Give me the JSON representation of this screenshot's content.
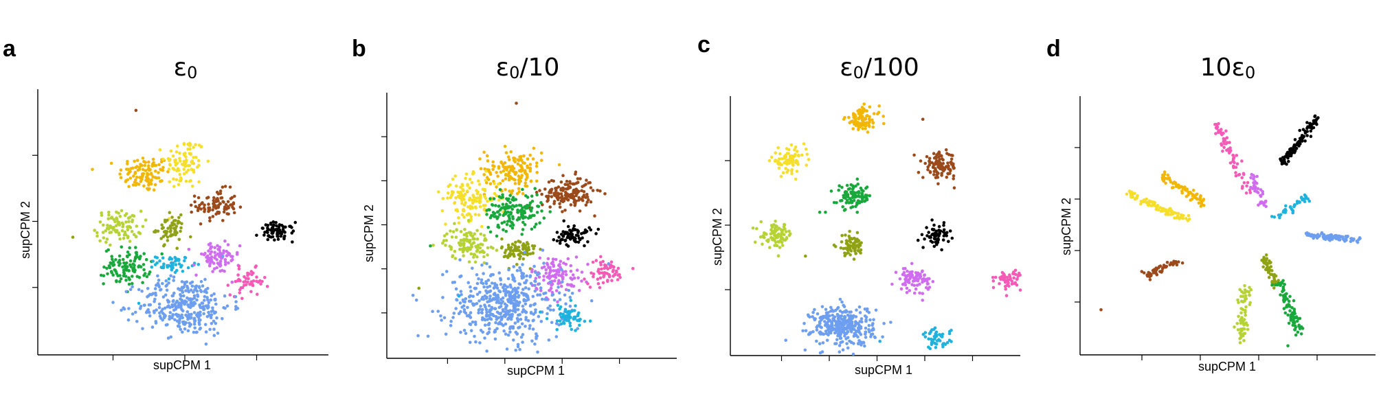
{
  "panels": [
    {
      "letter": "a",
      "title": "ε0",
      "xlabel": "supCPM 1",
      "ylabel": "supCPM 2",
      "x_ticks": 3,
      "y_ticks": 3
    },
    {
      "letter": "b",
      "title": "ε0/10",
      "xlabel": "supCPM 1",
      "ylabel": "supCPM 2",
      "x_ticks": 4,
      "y_ticks": 5
    },
    {
      "letter": "c",
      "title": "ε0/100",
      "xlabel": "supCPM 1",
      "ylabel": "supCPM 2",
      "x_ticks": 5,
      "y_ticks": 3
    },
    {
      "letter": "d",
      "title": "10ε0",
      "xlabel": "supCPM 1",
      "ylabel": "supCPM 2",
      "x_ticks": 4,
      "y_ticks": 4
    }
  ],
  "chart_data": [
    {
      "type": "scatter",
      "title": "ε0",
      "xlabel": "supCPM 1",
      "ylabel": "supCPM 2",
      "xlim": [
        0,
        100
      ],
      "ylim": [
        0,
        100
      ],
      "clusters": [
        {
          "color": "#f2b705",
          "center": [
            36,
            68
          ],
          "spread": [
            4.5,
            3.5
          ],
          "count": 110,
          "shape": "blob"
        },
        {
          "color": "#f5df2a",
          "center": [
            50,
            72
          ],
          "spread": [
            3.5,
            5
          ],
          "count": 90,
          "shape": "blob"
        },
        {
          "color": "#9b4a1b",
          "center": [
            61,
            56
          ],
          "spread": [
            3.5,
            3
          ],
          "count": 90,
          "shape": "blob"
        },
        {
          "color": "#b5d334",
          "center": [
            27,
            48
          ],
          "spread": [
            4,
            3
          ],
          "count": 90,
          "shape": "blob"
        },
        {
          "color": "#8fa214",
          "center": [
            45,
            47
          ],
          "spread": [
            2.5,
            2.5
          ],
          "count": 60,
          "shape": "blob"
        },
        {
          "color": "#000000",
          "center": [
            82,
            46
          ],
          "spread": [
            3,
            1.8
          ],
          "count": 70,
          "shape": "blob"
        },
        {
          "color": "#18a83b",
          "center": [
            30,
            33
          ],
          "spread": [
            4,
            3.5
          ],
          "count": 110,
          "shape": "blob"
        },
        {
          "color": "#1eb3de",
          "center": [
            46,
            34
          ],
          "spread": [
            3,
            1.5
          ],
          "count": 50,
          "shape": "blob"
        },
        {
          "color": "#cf6cf0",
          "center": [
            61,
            36
          ],
          "spread": [
            4,
            3
          ],
          "count": 80,
          "shape": "blob"
        },
        {
          "color": "#f55bb6",
          "center": [
            72,
            27
          ],
          "spread": [
            3,
            2.5
          ],
          "count": 50,
          "shape": "blob"
        },
        {
          "color": "#6d9ef0",
          "center": [
            50,
            18
          ],
          "spread": [
            8,
            5.5
          ],
          "count": 320,
          "shape": "blob"
        }
      ],
      "outliers": [
        {
          "x": 33,
          "y": 92,
          "color": "#9b4a1b"
        },
        {
          "x": 11,
          "y": 44,
          "color": "#8fa214"
        },
        {
          "x": 34,
          "y": 19,
          "color": "#1eb3de"
        },
        {
          "x": 54,
          "y": 8,
          "color": "#6d9ef0"
        }
      ]
    },
    {
      "type": "scatter",
      "title": "ε0/10",
      "xlabel": "supCPM 1",
      "ylabel": "supCPM 2",
      "xlim": [
        0,
        100
      ],
      "ylim": [
        0,
        100
      ],
      "clusters": [
        {
          "color": "#f2b705",
          "center": [
            43,
            71
          ],
          "spread": [
            5,
            4
          ],
          "count": 150,
          "shape": "blob"
        },
        {
          "color": "#f5df2a",
          "center": [
            28,
            60
          ],
          "spread": [
            5,
            4
          ],
          "count": 130,
          "shape": "blob"
        },
        {
          "color": "#9b4a1b",
          "center": [
            62,
            62
          ],
          "spread": [
            4.5,
            3
          ],
          "count": 160,
          "shape": "blob"
        },
        {
          "color": "#18a83b",
          "center": [
            43,
            55
          ],
          "spread": [
            5,
            3.5
          ],
          "count": 150,
          "shape": "blob"
        },
        {
          "color": "#b5d334",
          "center": [
            27,
            43
          ],
          "spread": [
            4,
            3
          ],
          "count": 110,
          "shape": "blob"
        },
        {
          "color": "#8fa214",
          "center": [
            45,
            40
          ],
          "spread": [
            3,
            2.5
          ],
          "count": 80,
          "shape": "blob"
        },
        {
          "color": "#000000",
          "center": [
            64,
            46
          ],
          "spread": [
            3,
            2
          ],
          "count": 70,
          "shape": "blob"
        },
        {
          "color": "#cf6cf0",
          "center": [
            58,
            31
          ],
          "spread": [
            4.5,
            3.5
          ],
          "count": 110,
          "shape": "blob"
        },
        {
          "color": "#f55bb6",
          "center": [
            75,
            32
          ],
          "spread": [
            3.5,
            2.5
          ],
          "count": 60,
          "shape": "blob"
        },
        {
          "color": "#6d9ef0",
          "center": [
            40,
            20
          ],
          "spread": [
            10,
            7
          ],
          "count": 480,
          "shape": "blob"
        },
        {
          "color": "#1eb3de",
          "center": [
            62,
            15
          ],
          "spread": [
            3.5,
            2.5
          ],
          "count": 60,
          "shape": "blob"
        }
      ],
      "outliers": [
        {
          "x": 44,
          "y": 96,
          "color": "#9b4a1b"
        },
        {
          "x": 10,
          "y": 26,
          "color": "#8fa214"
        },
        {
          "x": 24,
          "y": 23,
          "color": "#1eb3de"
        },
        {
          "x": 14,
          "y": 42,
          "color": "#18a83b"
        }
      ]
    },
    {
      "type": "scatter",
      "title": "ε0/100",
      "xlabel": "supCPM 1",
      "ylabel": "supCPM 2",
      "xlim": [
        0,
        100
      ],
      "ylim": [
        0,
        100
      ],
      "clusters": [
        {
          "color": "#f2b705",
          "center": [
            45,
            91
          ],
          "spread": [
            3,
            2.3
          ],
          "count": 90,
          "shape": "blob"
        },
        {
          "color": "#f5df2a",
          "center": [
            19,
            75
          ],
          "spread": [
            3,
            2.3
          ],
          "count": 80,
          "shape": "blob"
        },
        {
          "color": "#9b4a1b",
          "center": [
            72,
            73
          ],
          "spread": [
            3,
            2.5
          ],
          "count": 110,
          "shape": "blob"
        },
        {
          "color": "#18a83b",
          "center": [
            42,
            61
          ],
          "spread": [
            3,
            2.3
          ],
          "count": 90,
          "shape": "blob"
        },
        {
          "color": "#b5d334",
          "center": [
            15,
            46
          ],
          "spread": [
            2.8,
            2.3
          ],
          "count": 80,
          "shape": "blob"
        },
        {
          "color": "#8fa214",
          "center": [
            41,
            42
          ],
          "spread": [
            2.4,
            2
          ],
          "count": 70,
          "shape": "blob"
        },
        {
          "color": "#000000",
          "center": [
            71,
            46
          ],
          "spread": [
            2,
            2
          ],
          "count": 60,
          "shape": "blob"
        },
        {
          "color": "#cf6cf0",
          "center": [
            63,
            29
          ],
          "spread": [
            2.8,
            2.3
          ],
          "count": 80,
          "shape": "blob"
        },
        {
          "color": "#f55bb6",
          "center": [
            96,
            29
          ],
          "spread": [
            2.2,
            2
          ],
          "count": 50,
          "shape": "blob"
        },
        {
          "color": "#6d9ef0",
          "center": [
            38,
            11
          ],
          "spread": [
            5.5,
            3.8
          ],
          "count": 330,
          "shape": "blob"
        },
        {
          "color": "#1eb3de",
          "center": [
            71,
            6
          ],
          "spread": [
            2.4,
            2
          ],
          "count": 50,
          "shape": "blob"
        }
      ],
      "outliers": [
        {
          "x": 66,
          "y": 91,
          "color": "#9b4a1b"
        },
        {
          "x": 30,
          "y": 55,
          "color": "#18a83b"
        },
        {
          "x": 32,
          "y": 55,
          "color": "#18a83b"
        },
        {
          "x": 25,
          "y": 38,
          "color": "#8fa214"
        },
        {
          "x": 51,
          "y": 5,
          "color": "#1eb3de"
        }
      ]
    },
    {
      "type": "scatter",
      "title": "10ε0",
      "xlabel": "supCPM 1",
      "ylabel": "supCPM 2",
      "xlim": [
        0,
        100
      ],
      "ylim": [
        0,
        100
      ],
      "clusters": [
        {
          "color": "#000000",
          "center": [
            74,
            83
          ],
          "spread": [
            0.8,
            0.8
          ],
          "count": 110,
          "shape": "line",
          "end": [
            [
              68,
              74
            ],
            [
              80,
              92
            ]
          ]
        },
        {
          "color": "#f55bb6",
          "center": [
            51,
            77
          ],
          "spread": [
            0.8,
            0.8
          ],
          "count": 70,
          "shape": "line",
          "end": [
            [
              46,
              89
            ],
            [
              56,
              63
            ]
          ]
        },
        {
          "color": "#f2b705",
          "center": [
            34,
            64
          ],
          "spread": [
            0.8,
            0.8
          ],
          "count": 70,
          "shape": "line",
          "end": [
            [
              26,
              70
            ],
            [
              42,
              58
            ]
          ]
        },
        {
          "color": "#f5df2a",
          "center": [
            25,
            57
          ],
          "spread": [
            0.8,
            0.8
          ],
          "count": 90,
          "shape": "line",
          "end": [
            [
              15,
              62
            ],
            [
              36,
              52
            ]
          ]
        },
        {
          "color": "#cf6cf0",
          "center": [
            60,
            63
          ],
          "spread": [
            0.8,
            0.8
          ],
          "count": 40,
          "shape": "line",
          "end": [
            [
              58,
              69
            ],
            [
              62,
              57
            ]
          ]
        },
        {
          "color": "#1eb3de",
          "center": [
            71,
            57
          ],
          "spread": [
            0.8,
            0.8
          ],
          "count": 40,
          "shape": "line",
          "end": [
            [
              66,
              53
            ],
            [
              77,
              61
            ]
          ]
        },
        {
          "color": "#6d9ef0",
          "center": [
            85,
            45
          ],
          "spread": [
            0.6,
            0.6
          ],
          "count": 90,
          "shape": "line",
          "end": [
            [
              77,
              46
            ],
            [
              95,
              44
            ]
          ]
        },
        {
          "color": "#9b4a1b",
          "center": [
            27,
            33
          ],
          "spread": [
            0.7,
            0.7
          ],
          "count": 50,
          "shape": "line",
          "end": [
            [
              21,
              30
            ],
            [
              33,
              36
            ]
          ]
        },
        {
          "color": "#8fa214",
          "center": [
            64,
            32
          ],
          "spread": [
            0.8,
            0.8
          ],
          "count": 60,
          "shape": "line",
          "end": [
            [
              62,
              37
            ],
            [
              66,
              26
            ]
          ]
        },
        {
          "color": "#b5d334",
          "center": [
            55,
            17
          ],
          "spread": [
            0.9,
            0.9
          ],
          "count": 70,
          "shape": "line",
          "end": [
            [
              56,
              27
            ],
            [
              54,
              6
            ]
          ]
        },
        {
          "color": "#18a83b",
          "center": [
            71,
            17
          ],
          "spread": [
            0.9,
            0.9
          ],
          "count": 80,
          "shape": "line",
          "end": [
            [
              67,
              28
            ],
            [
              74,
              8
            ]
          ]
        }
      ],
      "outliers": [
        {
          "x": 6,
          "y": 17,
          "color": "#9b4a1b"
        },
        {
          "x": 70,
          "y": 3,
          "color": "#18a83b"
        }
      ]
    }
  ]
}
